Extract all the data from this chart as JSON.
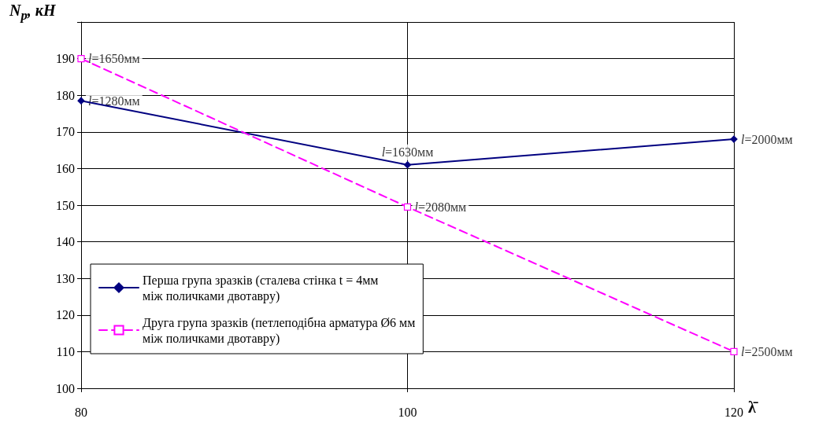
{
  "chart_data": {
    "type": "line",
    "xlabel": "λ̄",
    "ylabel": "N$_{p}$, кН",
    "x": [
      80,
      100,
      120
    ],
    "series": [
      {
        "name": "Перша група зразків (сталева стінка t = 4мм\nміж поличками двотавру)",
        "color": "#000080",
        "values": [
          178.5,
          161,
          168
        ],
        "marker": "diamond",
        "line_style": "solid"
      },
      {
        "name": "Друга група зразків (петлеподібна арматура Ø6 мм\nміж поличками двотавру)",
        "color": "#ff00ff",
        "values": [
          190,
          149.5,
          110
        ],
        "marker": "square",
        "line_style": "dashed"
      }
    ],
    "xlim": [
      80,
      120
    ],
    "xticks": [
      80,
      100,
      120
    ],
    "ylim": [
      100,
      200
    ],
    "yticks": [
      100,
      110,
      120,
      130,
      140,
      150,
      160,
      170,
      180,
      190,
      {
        "value": 200,
        "label": null
      }
    ],
    "grid": true,
    "legend": "bottom left",
    "annotations": [
      {
        "text": "l=1650мм",
        "x": 80,
        "y": 190
      },
      {
        "text": "l=1280мм",
        "x": 80,
        "y": 178.5
      },
      {
        "text": "l=1630мм",
        "x": 100,
        "y": 161
      },
      {
        "text": "l=2000мм",
        "x": 120,
        "y": 168
      },
      {
        "text": "l=2080мм",
        "x": 100,
        "y": 149.5
      },
      {
        "text": "l=2500мм",
        "x": 120,
        "y": 110
      }
    ]
  }
}
